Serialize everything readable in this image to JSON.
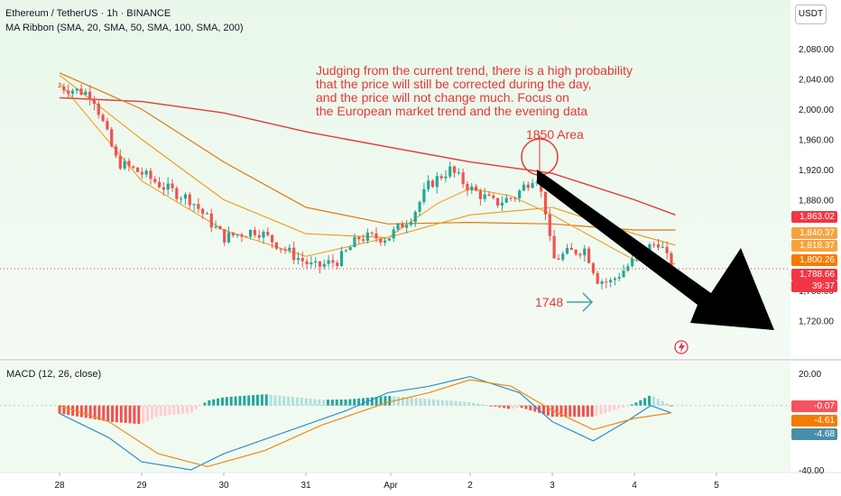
{
  "header": {
    "symbol_line": "Ethereum / TetherUS · 1h · BINANCE",
    "indicator_line": "MA Ribbon (SMA, 20, SMA, 50, SMA, 100, SMA, 200)",
    "currency_button": "USDT"
  },
  "annotations": {
    "note_lines": [
      "Judging from the current trend, there is a high probability",
      " that the price will still be corrected during the day,",
      "and the price will not change much. Focus on",
      "the European market trend and the evening data"
    ],
    "area_label": "1850 Area",
    "support_label": "1748"
  },
  "price_axis": {
    "ticks": [
      "2,080.00",
      "2,040.00",
      "2,000.00",
      "1,960.00",
      "1,920.00",
      "1,880.00",
      "1,760.00",
      "1,720.00"
    ],
    "tags": [
      {
        "label": "1,863.02",
        "color": "#f23645"
      },
      {
        "label": "1,840.37",
        "color": "#f7a33d"
      },
      {
        "label": "1,818.37",
        "color": "#f7a33d"
      },
      {
        "label": "1,800.26",
        "color": "#f57c00"
      },
      {
        "label": "1,788.66",
        "color": "#f23645"
      },
      {
        "label": "39:37",
        "color": "#f23645"
      }
    ]
  },
  "macd_panel": {
    "title": "MACD (12, 26, close)",
    "ticks": [
      "20.00",
      "-40.00"
    ],
    "tags": [
      {
        "label": "-0.07",
        "color": "#f7525f"
      },
      {
        "label": "-4.61",
        "color": "#f57c00"
      },
      {
        "label": "-4.68",
        "color": "#4a8fa8"
      }
    ]
  },
  "time_axis": {
    "labels": [
      "28",
      "29",
      "30",
      "31",
      "Apr",
      "2",
      "3",
      "4",
      "5"
    ]
  },
  "colors": {
    "up": "#26a69a",
    "down": "#ef5350",
    "sma20": "#f0a020",
    "sma50": "#ee9a18",
    "sma100": "#e07a10",
    "sma200": "#e53935",
    "annotation": "#e53935",
    "macd_line": "#2e90c8",
    "signal_line": "#f08a10"
  },
  "chart_data": {
    "type": "candlestick",
    "symbol": "ETH/USDT",
    "interval": "1h",
    "x_labels": [
      "28",
      "29",
      "30",
      "31",
      "Apr",
      "2",
      "3",
      "4",
      "5"
    ],
    "price_range": [
      1700,
      2100
    ],
    "close_path": [
      {
        "t": 0.0,
        "p": 2030
      },
      {
        "t": 0.4,
        "p": 2020
      },
      {
        "t": 0.55,
        "p": 1975
      },
      {
        "t": 0.7,
        "p": 1930
      },
      {
        "t": 1.0,
        "p": 1915
      },
      {
        "t": 1.3,
        "p": 1895
      },
      {
        "t": 1.6,
        "p": 1880
      },
      {
        "t": 2.0,
        "p": 1830
      },
      {
        "t": 2.4,
        "p": 1840
      },
      {
        "t": 2.8,
        "p": 1810
      },
      {
        "t": 3.1,
        "p": 1790
      },
      {
        "t": 3.4,
        "p": 1800
      },
      {
        "t": 3.65,
        "p": 1830
      },
      {
        "t": 4.0,
        "p": 1830
      },
      {
        "t": 4.3,
        "p": 1860
      },
      {
        "t": 4.5,
        "p": 1900
      },
      {
        "t": 4.75,
        "p": 1920
      },
      {
        "t": 5.0,
        "p": 1895
      },
      {
        "t": 5.3,
        "p": 1875
      },
      {
        "t": 5.55,
        "p": 1885
      },
      {
        "t": 5.8,
        "p": 1915
      },
      {
        "t": 5.92,
        "p": 1865
      },
      {
        "t": 6.0,
        "p": 1800
      },
      {
        "t": 6.2,
        "p": 1810
      },
      {
        "t": 6.4,
        "p": 1815
      },
      {
        "t": 6.55,
        "p": 1775
      },
      {
        "t": 6.7,
        "p": 1770
      },
      {
        "t": 6.85,
        "p": 1785
      },
      {
        "t": 7.0,
        "p": 1800
      },
      {
        "t": 7.15,
        "p": 1815
      },
      {
        "t": 7.3,
        "p": 1825
      },
      {
        "t": 7.45,
        "p": 1789
      }
    ],
    "sma20": [
      [
        0.0,
        2035
      ],
      [
        1.0,
        1905
      ],
      [
        2.0,
        1840
      ],
      [
        3.0,
        1805
      ],
      [
        4.0,
        1830
      ],
      [
        4.6,
        1875
      ],
      [
        5.0,
        1895
      ],
      [
        5.5,
        1885
      ],
      [
        6.0,
        1860
      ],
      [
        6.5,
        1830
      ],
      [
        7.0,
        1800
      ],
      [
        7.5,
        1795
      ]
    ],
    "sma50": [
      [
        0.0,
        2045
      ],
      [
        1.0,
        1960
      ],
      [
        2.0,
        1880
      ],
      [
        3.0,
        1835
      ],
      [
        4.0,
        1830
      ],
      [
        5.0,
        1860
      ],
      [
        6.0,
        1870
      ],
      [
        7.0,
        1835
      ],
      [
        7.5,
        1820
      ]
    ],
    "sma100": [
      [
        0.0,
        2048
      ],
      [
        1.0,
        2000
      ],
      [
        2.0,
        1930
      ],
      [
        3.0,
        1870
      ],
      [
        4.0,
        1848
      ],
      [
        5.0,
        1850
      ],
      [
        6.0,
        1848
      ],
      [
        7.0,
        1840
      ],
      [
        7.5,
        1840
      ]
    ],
    "sma200": [
      [
        0.0,
        2015
      ],
      [
        1.0,
        2010
      ],
      [
        2.0,
        1995
      ],
      [
        3.0,
        1970
      ],
      [
        4.0,
        1950
      ],
      [
        5.0,
        1930
      ],
      [
        6.0,
        1915
      ],
      [
        7.0,
        1880
      ],
      [
        7.5,
        1860
      ]
    ],
    "last_price": 1788.66,
    "macd_range": [
      -45,
      25
    ],
    "macd": [
      [
        0.0,
        -5
      ],
      [
        0.6,
        -20
      ],
      [
        1.0,
        -35
      ],
      [
        1.6,
        -40
      ],
      [
        2.0,
        -30
      ],
      [
        3.0,
        -12
      ],
      [
        3.5,
        -3
      ],
      [
        4.0,
        8
      ],
      [
        4.5,
        12
      ],
      [
        5.0,
        18
      ],
      [
        5.6,
        8
      ],
      [
        6.0,
        -10
      ],
      [
        6.5,
        -22
      ],
      [
        6.9,
        -10
      ],
      [
        7.2,
        0
      ],
      [
        7.45,
        -4.68
      ]
    ],
    "signal": [
      [
        0.0,
        0
      ],
      [
        0.6,
        -10
      ],
      [
        1.2,
        -30
      ],
      [
        1.8,
        -38
      ],
      [
        2.5,
        -28
      ],
      [
        3.2,
        -12
      ],
      [
        4.0,
        2
      ],
      [
        4.5,
        8
      ],
      [
        5.0,
        16
      ],
      [
        5.5,
        12
      ],
      [
        6.0,
        -3
      ],
      [
        6.5,
        -15
      ],
      [
        7.0,
        -8
      ],
      [
        7.45,
        -4.61
      ]
    ],
    "histogram_last": -0.07
  }
}
